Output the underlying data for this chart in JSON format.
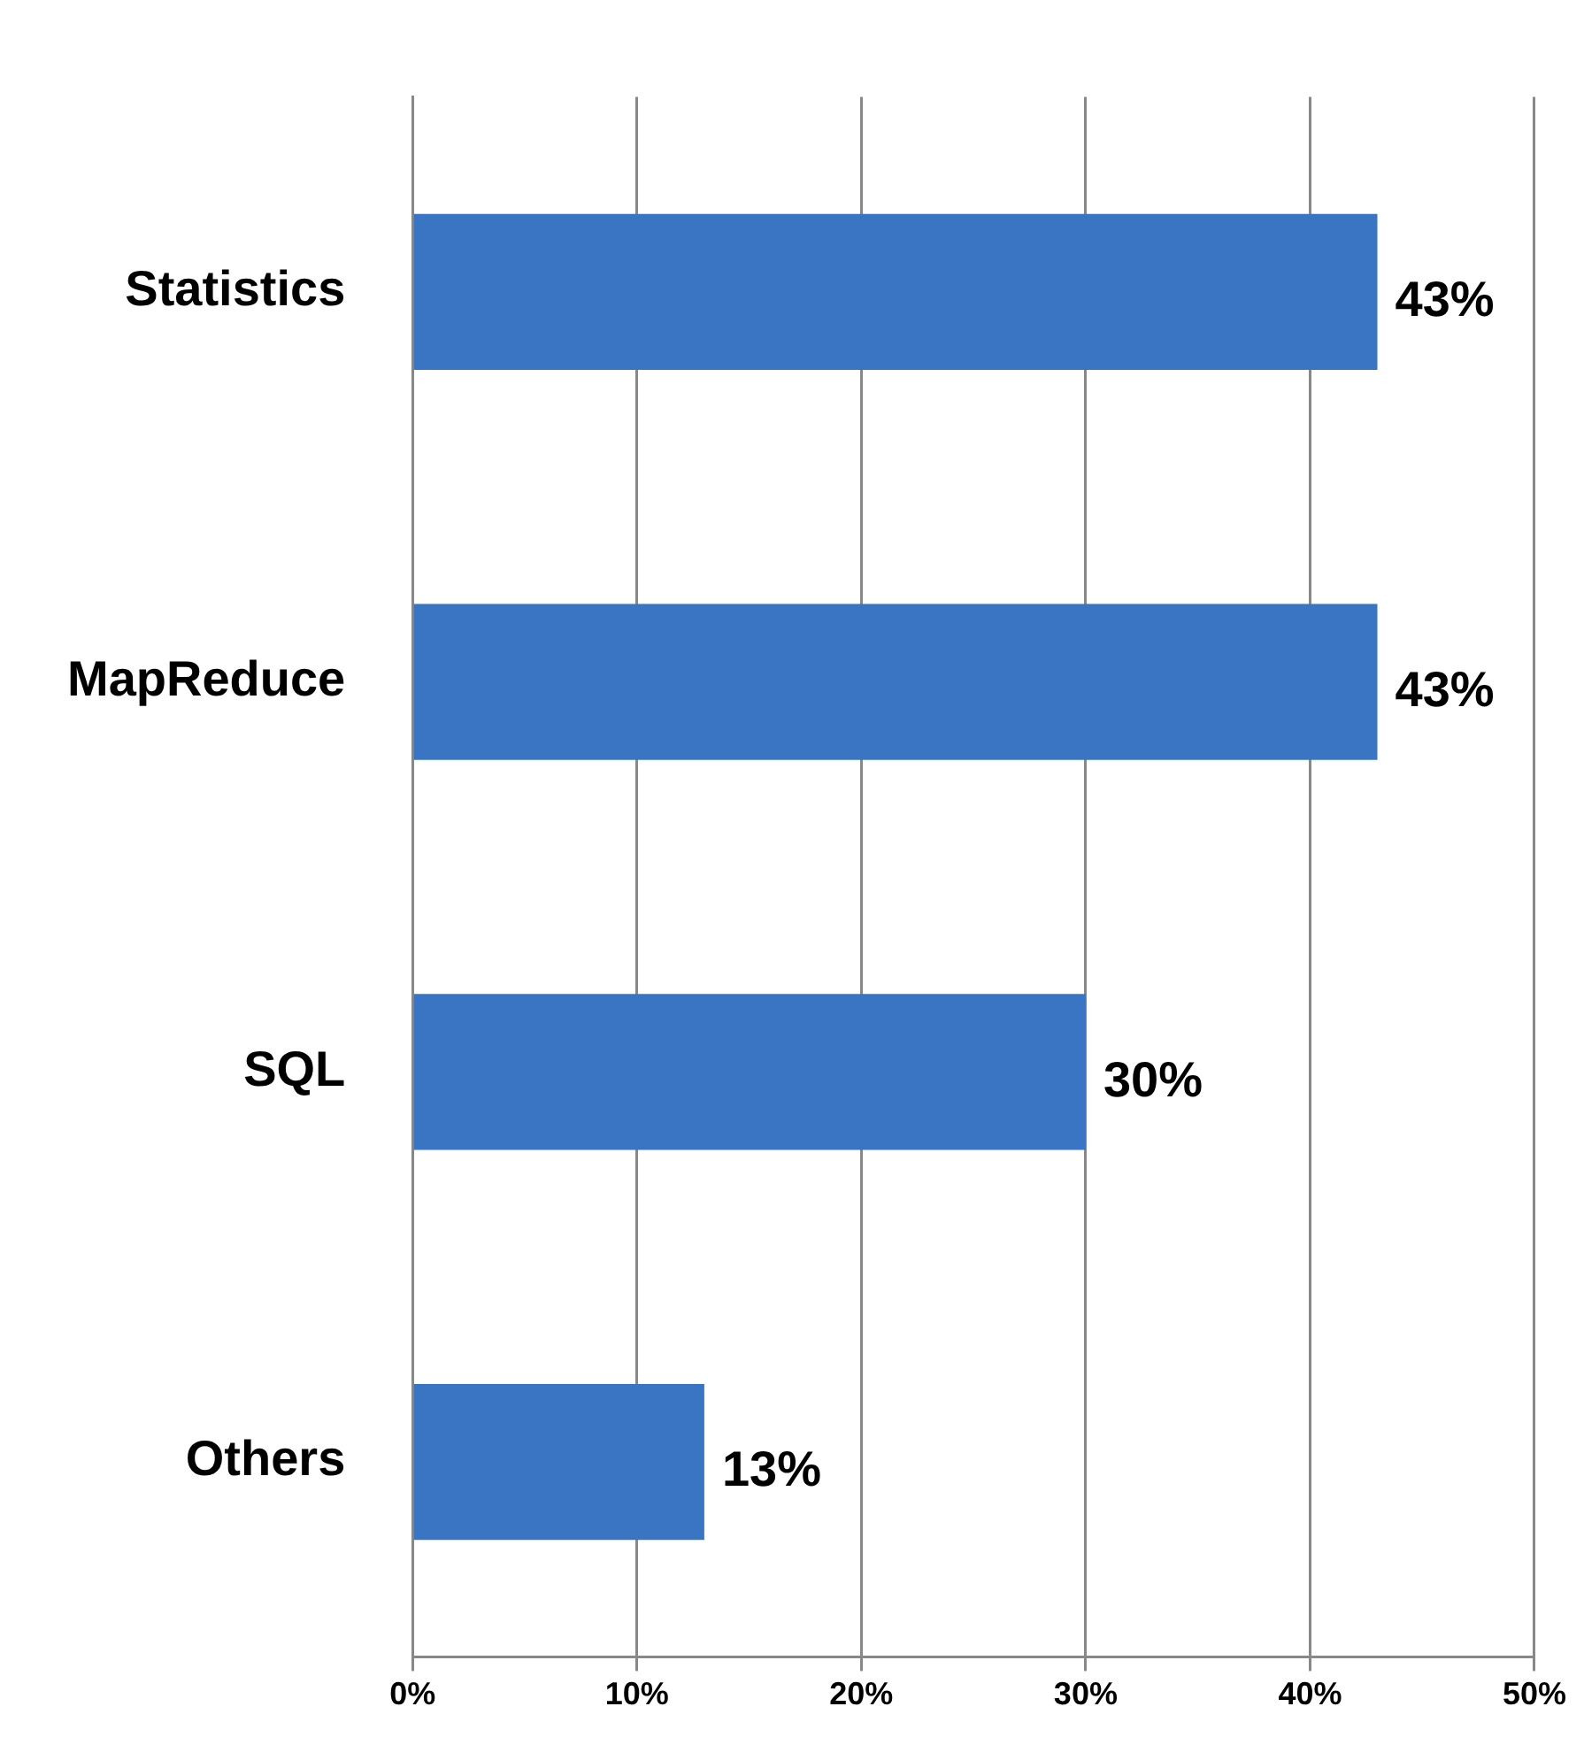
{
  "chart_data": {
    "type": "bar",
    "orientation": "horizontal",
    "categories": [
      "Statistics",
      "MapReduce",
      "SQL",
      "Others"
    ],
    "values": [
      43,
      43,
      30,
      13
    ],
    "value_labels": [
      "43%",
      "43%",
      "30%",
      "13%"
    ],
    "color": "#3a75c4",
    "xlim": [
      0,
      50
    ],
    "xticks": [
      {
        "value": 0,
        "label": "0%"
      },
      {
        "value": 10,
        "label": "10%"
      },
      {
        "value": 20,
        "label": "20%"
      },
      {
        "value": 30,
        "label": "30%"
      },
      {
        "value": 40,
        "label": "40%"
      },
      {
        "value": 50,
        "label": "50%"
      }
    ],
    "grid": "x",
    "legend": false
  }
}
